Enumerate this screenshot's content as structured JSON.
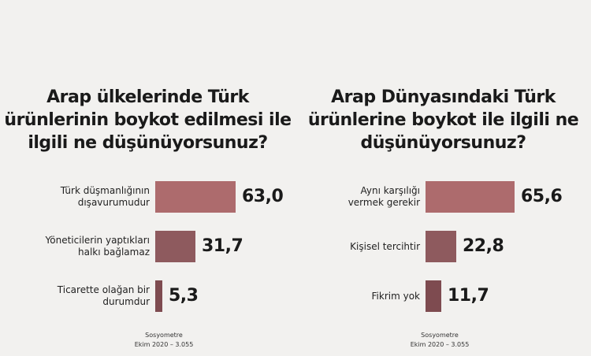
{
  "chart_data": [
    {
      "type": "bar",
      "orientation": "horizontal",
      "title_lines": [
        "Arap ülkelerinde Türk",
        "ürünlerinin boykot edilmesi ile",
        "ilgili ne düşünüyorsunuz?"
      ],
      "categories": [
        [
          "Türk düşmanlığının",
          "dışavurumudur"
        ],
        [
          "Yöneticilerin yaptıkları",
          "halkı bağlamaz"
        ],
        [
          "Ticarette olağan bir",
          "durumdur"
        ]
      ],
      "values": [
        63.0,
        31.7,
        5.3
      ],
      "value_labels": [
        "63,0",
        "31,7",
        "5,3"
      ],
      "colors": [
        "#ad6b6d",
        "#8e5a5e",
        "#7e4b50"
      ],
      "xlim": [
        0,
        100
      ],
      "source_lines": [
        "Sosyometre",
        "Ekim 2020 – 3.055"
      ]
    },
    {
      "type": "bar",
      "orientation": "horizontal",
      "title_lines": [
        "Arap Dünyasındaki Türk",
        "ürünlerine boykot ile ilgili ne",
        "düşünüyorsunuz?"
      ],
      "categories": [
        [
          "Aynı karşılığı",
          "vermek gerekir"
        ],
        [
          "Kişisel tercihtir"
        ],
        [
          "Fikrim yok"
        ]
      ],
      "values": [
        65.6,
        22.8,
        11.7
      ],
      "value_labels": [
        "65,6",
        "22,8",
        "11,7"
      ],
      "colors": [
        "#ad6b6d",
        "#8e5a5e",
        "#7e4b50"
      ],
      "xlim": [
        0,
        100
      ],
      "source_lines": [
        "Sosyometre",
        "Ekim 2020 – 3.055"
      ]
    }
  ]
}
